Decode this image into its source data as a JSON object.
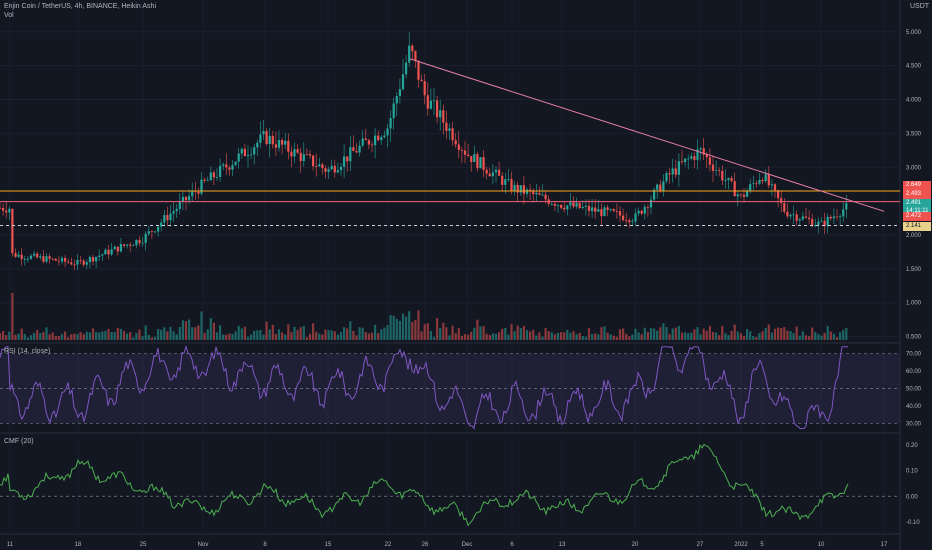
{
  "header": {
    "title": "Enjin Coin / TetherUS, 4h, BINANCE, Heikin Ashi",
    "vol_label": "Vol",
    "currency": "USDT"
  },
  "colors": {
    "bg": "#131722",
    "up": "#26a69a",
    "down": "#ef5350",
    "grid": "#2a2e39",
    "trend": "#e57fa8",
    "orange": "#f7a41d",
    "red_line": "#f06070",
    "rsi": "#7e57c2",
    "cmf": "#4caf50"
  },
  "chart_data": [
    {
      "type": "candlestick",
      "title": "Enjin Coin / TetherUS, 4h, BINANCE, Heikin Ashi",
      "x_ticks": [
        "11",
        "18",
        "25",
        "Nov",
        "8",
        "15",
        "22",
        "26",
        "Dec",
        "6",
        "13",
        "20",
        "27",
        "2022",
        "5",
        "10",
        "17"
      ],
      "y_ticks": [
        "5.000",
        "4.500",
        "4.000",
        "3.500",
        "3.000",
        "2.500",
        "2.000",
        "1.500",
        "1.000",
        "0.500"
      ],
      "y_range": [
        0.45,
        5.1
      ],
      "path": [
        [
          "11",
          1.72
        ],
        [
          "18",
          1.58
        ],
        [
          "25",
          1.95
        ],
        [
          "Nov",
          2.75
        ],
        [
          "8",
          3.45
        ],
        [
          "15",
          2.95
        ],
        [
          "22",
          3.6
        ],
        [
          "24",
          4.75
        ],
        [
          "26",
          4.05
        ],
        [
          "Dec",
          3.2
        ],
        [
          "6",
          2.7
        ],
        [
          "13",
          2.45
        ],
        [
          "20",
          2.25
        ],
        [
          "24",
          2.9
        ],
        [
          "27",
          3.25
        ],
        [
          "2022",
          2.55
        ],
        [
          "5",
          2.9
        ],
        [
          "8",
          2.35
        ],
        [
          "10",
          2.15
        ],
        [
          "12",
          2.4
        ]
      ],
      "trendline": [
        [
          "24",
          4.6
        ],
        [
          "17",
          2.35
        ]
      ],
      "levels": {
        "orange": 2.649,
        "red": 2.493,
        "dashed": 2.141
      },
      "price_badges": [
        "2.649",
        "2.493",
        "2.491",
        "14:11:11",
        "2.472",
        "2.141"
      ],
      "volume": "bars"
    },
    {
      "type": "line",
      "title": "RSI (14, close)",
      "y_ticks": [
        "70.00",
        "60.00",
        "50.00",
        "40.00",
        "30.00"
      ],
      "y_range": [
        25,
        75
      ],
      "bands": [
        30,
        50,
        70
      ],
      "path": [
        [
          "11",
          45
        ],
        [
          "18",
          40
        ],
        [
          "25",
          60
        ],
        [
          "Nov",
          65
        ],
        [
          "8",
          55
        ],
        [
          "15",
          50
        ],
        [
          "22",
          60
        ],
        [
          "24",
          72
        ],
        [
          "26",
          55
        ],
        [
          "Dec",
          35
        ],
        [
          "6",
          42
        ],
        [
          "13",
          40
        ],
        [
          "20",
          45
        ],
        [
          "24",
          70
        ],
        [
          "27",
          68
        ],
        [
          "2022",
          38
        ],
        [
          "5",
          62
        ],
        [
          "8",
          35
        ],
        [
          "10",
          32
        ],
        [
          "12",
          68
        ]
      ]
    },
    {
      "type": "line",
      "title": "CMF (20)",
      "y_ticks": [
        "0.20",
        "0.10",
        "0.00",
        "-0.10"
      ],
      "y_range": [
        -0.14,
        0.24
      ],
      "path": [
        [
          "11",
          0.0
        ],
        [
          "15",
          0.05
        ],
        [
          "18",
          0.12
        ],
        [
          "25",
          0.03
        ],
        [
          "Nov",
          -0.05
        ],
        [
          "8",
          0.02
        ],
        [
          "15",
          -0.05
        ],
        [
          "22",
          0.05
        ],
        [
          "26",
          -0.02
        ],
        [
          "Dec",
          -0.08
        ],
        [
          "6",
          0.0
        ],
        [
          "13",
          -0.05
        ],
        [
          "20",
          0.02
        ],
        [
          "24",
          0.1
        ],
        [
          "27",
          0.2
        ],
        [
          "2022",
          0.03
        ],
        [
          "5",
          -0.03
        ],
        [
          "8",
          -0.08
        ],
        [
          "10",
          -0.04
        ],
        [
          "12",
          0.05
        ]
      ]
    }
  ]
}
